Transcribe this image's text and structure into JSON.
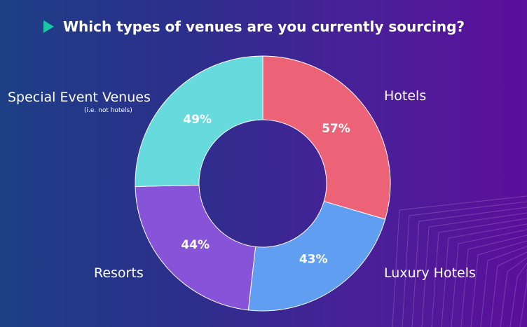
{
  "header": {
    "title": "Which types of venues are you currently sourcing?"
  },
  "chart_data": {
    "type": "pie",
    "donut": true,
    "categories": [
      "Hotels",
      "Luxury Hotels",
      "Resorts",
      "Special Event Venues"
    ],
    "values": [
      57,
      43,
      44,
      49
    ],
    "value_labels": [
      "57%",
      "43%",
      "44%",
      "49%"
    ],
    "category_sublabels": [
      "",
      "",
      "",
      "(i.e. not hotels)"
    ],
    "colors": [
      "#ec6378",
      "#5f9ef0",
      "#8753d8",
      "#67dadd"
    ],
    "legend": "labels-outside"
  }
}
